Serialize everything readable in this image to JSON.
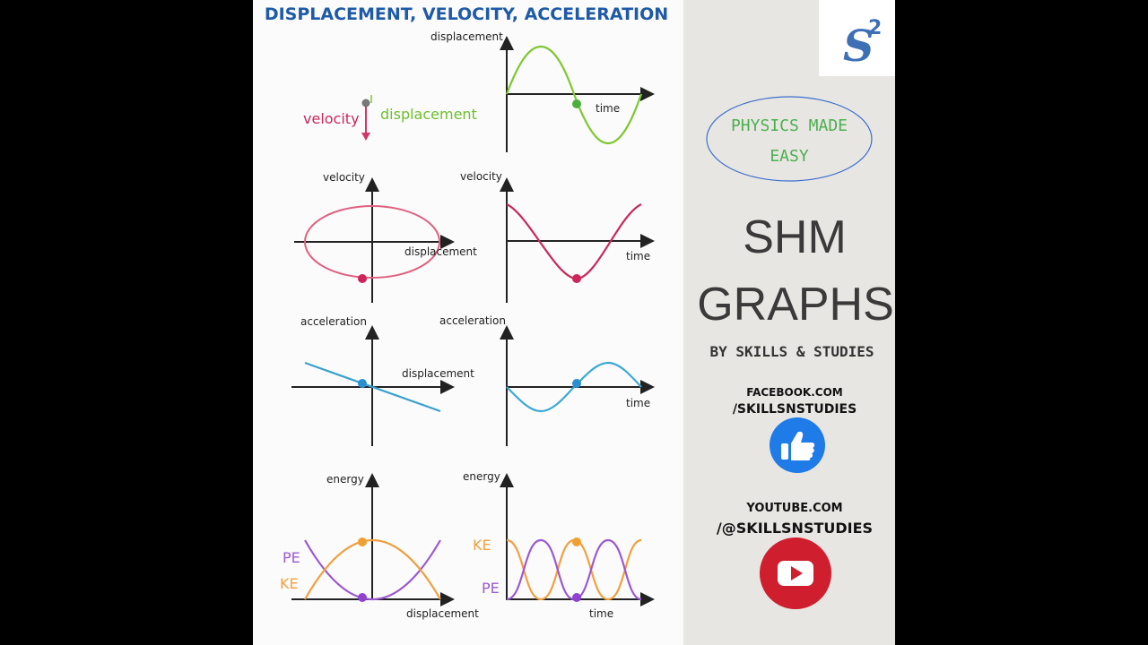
{
  "header": {
    "title": "DISPLACEMENT, VELOCITY, ACCELERATION"
  },
  "logo": {
    "letter": "S",
    "superscript": "2"
  },
  "graphs": [
    {
      "y_label": "displacement",
      "x_label": "time"
    },
    {
      "velocity_label": "velocity",
      "displacement_label": "displacement"
    },
    {
      "y_label": "velocity",
      "x_label": "displacement"
    },
    {
      "y_label": "velocity",
      "x_label": "time"
    },
    {
      "y_label": "acceleration",
      "x_label": "displacement"
    },
    {
      "y_label": "acceleration",
      "x_label": "time"
    },
    {
      "y_label": "energy",
      "x_label": "displacement",
      "legend": [
        "PE",
        "KE"
      ]
    },
    {
      "y_label": "energy",
      "x_label": "time",
      "legend": [
        "KE",
        "PE"
      ]
    }
  ],
  "sidebar": {
    "tagline": [
      "PHYSICS MADE",
      "EASY"
    ],
    "heading": [
      "SHM",
      "GRAPHS"
    ],
    "byline": "BY SKILLS & STUDIES",
    "facebook": [
      "FACEBOOK.COM",
      "/SKILLSNSTUDIES"
    ],
    "youtube": [
      "YOUTUBE.COM",
      "/@SKILLSNSTUDIES"
    ]
  }
}
